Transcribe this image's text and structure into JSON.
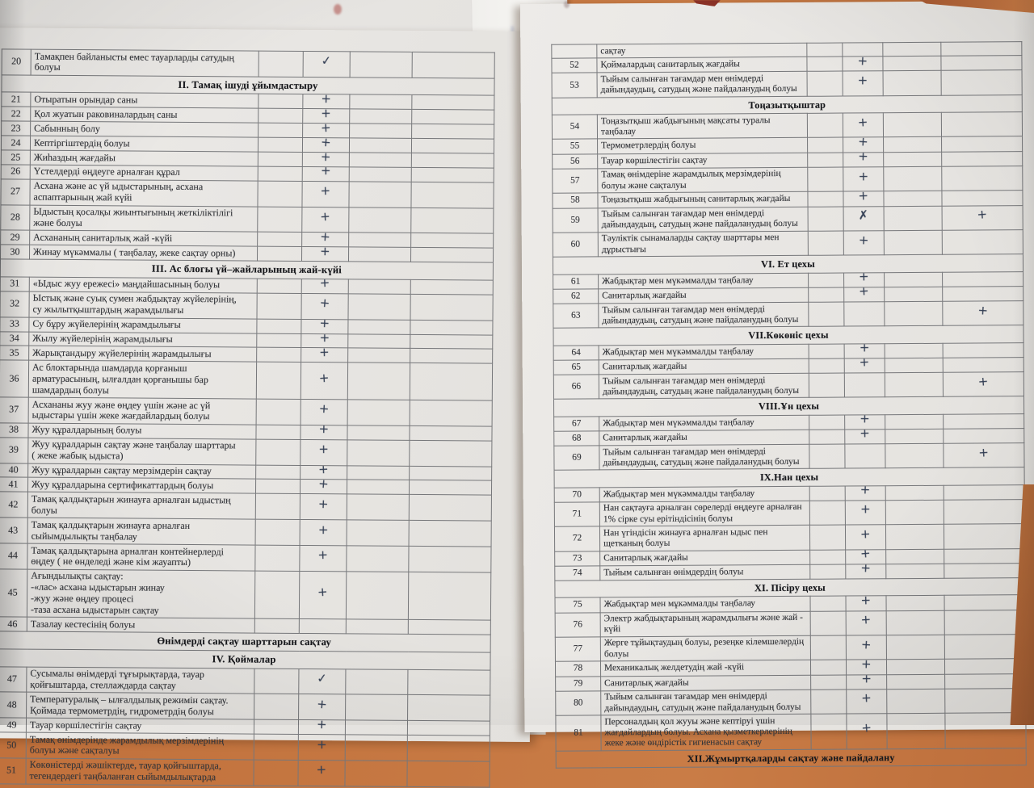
{
  "colors": {
    "desk": "#c1713c",
    "paper": "#e8e6e3",
    "ink": "#333f55",
    "border": "#76777a"
  },
  "page1": {
    "rows": [
      {
        "num": "20",
        "t": "Тамақпен  байланысты емес  тауарларды  сатудың\nболуы",
        "m": "✓"
      },
      {
        "section": "II. Тамақ ішуді  ұйымдастыру"
      },
      {
        "num": "21",
        "t": "Отыратын орындар саны",
        "m": "+"
      },
      {
        "num": "22",
        "t": "Қол жуатын  раковиналардың  саны",
        "m": "+"
      },
      {
        "num": "23",
        "t": "Сабынның болу",
        "m": "+"
      },
      {
        "num": "24",
        "t": "Кептіргіштердің болуы",
        "m": "+"
      },
      {
        "num": "25",
        "t": "Жиһаздың  жағдайы",
        "m": "+"
      },
      {
        "num": "26",
        "t": "Үстелдерді  өңдеуге  арналған құрал",
        "m": "+"
      },
      {
        "num": "27",
        "t": "Асхана  және ас үй  ыдыстарының, асхана\nаспаптарының  жай күйі",
        "m": "+"
      },
      {
        "num": "28",
        "t": "Ыдыстың  қосалқы  жиынтығының  жеткіліктілігі\nжәне  болуы",
        "m": "+"
      },
      {
        "num": "29",
        "t": "Асхананың  санитарлық жай -күйі",
        "m": "+"
      },
      {
        "num": "30",
        "t": "Жинау  мүкәммалы ( таңбалау, жеке сақтау орны)",
        "m": "+"
      },
      {
        "section": "III. Ас блогы үй–жайларының жай-күйі"
      },
      {
        "num": "31",
        "t": "«Ыдыс жуу ережесі» маңдайшасының болуы",
        "m": "+"
      },
      {
        "num": "32",
        "t": "Ыстық және суық  сумен  жабдықтау жүйелерінің,\nсу жылытқыштардың жарамдылығы",
        "m": "+"
      },
      {
        "num": "33",
        "t": "Су бұру  жүйелерінің жарамдылығы",
        "m": "+"
      },
      {
        "num": "34",
        "t": "Жылу жүйелерінің жарамдылығы",
        "m": "+"
      },
      {
        "num": "35",
        "t": "Жарықтандыру жүйелерінің жарамдылығы",
        "m": "+"
      },
      {
        "num": "36",
        "t": "Ас блоктарында шамдарда қорғаныш\nарматурасының, ылғалдан қорғанышы  бар\nшамдардың  болуы",
        "m": "+"
      },
      {
        "num": "37",
        "t": "Асхананы жуу және өңдеу үшін және ас үй\nыдыстары үшін жеке жағдайлардың болуы",
        "m": "+"
      },
      {
        "num": "38",
        "t": "Жуу құралдарының болуы",
        "m": "+"
      },
      {
        "num": "39",
        "t": "Жуу құралдарын сақтау  және таңбалау шарттары\n( жеке жабық ыдыста)",
        "m": "+"
      },
      {
        "num": "40",
        "t": "Жуу құралдарын сақтау  мерзімдерін  сақтау",
        "m": "+"
      },
      {
        "num": "41",
        "t": "Жуу құралдарына сертификаттардың болуы",
        "m": "+"
      },
      {
        "num": "42",
        "t": "Тамақ қалдықтарын жинауға  арналған  ыдыстың\nболуы",
        "m": "+"
      },
      {
        "num": "43",
        "t": "Тамақ қалдықтарын жинауға арналған\nсыйымдылықты таңбалау",
        "m": "+"
      },
      {
        "num": "44",
        "t": "Тамақ қалдықтарына арналған контейнерлерді\nөңдеу ( не өнделеді және кім  жауапты)",
        "m": "+"
      },
      {
        "num": "45",
        "t": "Ағындылықты  сақтау:\n-«лас» асхана ыдыстарын жинау\n-жуу және өңдеу процесі\n-таза асхана  ыдыстарын сақтау",
        "m": "+"
      },
      {
        "num": "46",
        "t": "Тазалау кестесінің болуы",
        "m": ""
      },
      {
        "section": "Өнімдерді  сақтау шарттарын  сақтау"
      },
      {
        "section": "IV. Қоймалар"
      },
      {
        "num": "47",
        "t": "Сусымалы өнімдерді тұғырықтарда, тауар\nқойғыштарда, стеллаждарда сақтау",
        "m": "✓"
      },
      {
        "num": "48",
        "t": "Температуралық – ылғалдылық режимін сақтау.\nҚоймада термометрдің, гидрометрдің болуы",
        "m": "+"
      },
      {
        "num": "49",
        "t": "Тауар көршілестігін сақтау",
        "m": "+"
      },
      {
        "num": "50",
        "t": "Тамақ өнімдерінде жарамдылық мерзімдерінің\nболуы және сақталуы",
        "m": "+"
      },
      {
        "num": "51",
        "t": "Көкөністерді жәшіктерде, тауар қойғыштарда,\nтегендердегі таңбаланған  сыйымдылықтарда",
        "m": "+"
      }
    ]
  },
  "page2": {
    "rows": [
      {
        "num": "",
        "t": "сақтау",
        "m": ""
      },
      {
        "num": "52",
        "t": "Қоймалардың санитарлық жағдайы",
        "m": "+"
      },
      {
        "num": "53",
        "t": "Тыйым салынған тағамдар мен өнімдерді\nдайындаудың, сатудың және пайдаланудың болуы",
        "m": "+"
      },
      {
        "section": "Тоңазытқыштар"
      },
      {
        "num": "54",
        "t": "Тоңазытқыш жабдығының мақсаты туралы\nтаңбалау",
        "m": "+"
      },
      {
        "num": "55",
        "t": "Термометрлердің болуы",
        "m": "+"
      },
      {
        "num": "56",
        "t": "Тауар көршілестігін  сақтау",
        "m": "+"
      },
      {
        "num": "57",
        "t": "Тамақ өнімдеріне жарамдылық мерзімдерінің\nболуы және сақталуы",
        "m": "+"
      },
      {
        "num": "58",
        "t": "Тоңазытқыш жабдығының санитарлық жағдайы",
        "m": "+"
      },
      {
        "num": "59",
        "t": "Тыйым  салынған тағамдар мен өнімдерді\nдайындаудың, сатудың және пайдаланудың болуы",
        "m": "✗",
        "m2": "+"
      },
      {
        "num": "60",
        "t": "Тәуліктік  сынамаларды  сақтау шарттары  мен\nдұрыстығы",
        "m": "+"
      },
      {
        "section": "VI. Ет цехы"
      },
      {
        "num": "61",
        "t": "Жабдықтар мен  мүкәммалды таңбалау",
        "m": "+"
      },
      {
        "num": "62",
        "t": "Санитарлық  жағдайы",
        "m": "+"
      },
      {
        "num": "63",
        "t": "Тыйым салынған  тағамдар мен өнімдерді\nдайындаудың, сатудың және пайдаланудың болуы",
        "m": "",
        "m2": "+"
      },
      {
        "section": "VII.Көкөніс цехы"
      },
      {
        "num": "64",
        "t": "Жабдықтар мен  мүкәммалды таңбалау",
        "m": "+"
      },
      {
        "num": "65",
        "t": "Санитарлық  жағдайы",
        "m": "+"
      },
      {
        "num": "66",
        "t": "Тыйым салынған  тағамдар мен өнімдерді\nдайындаудың, сатудың және пайдаланудың болуы",
        "m": "",
        "m2": "+"
      },
      {
        "section": "VIII.Ұн цехы"
      },
      {
        "num": "67",
        "t": "Жабдықтар мен  мүкәммалды таңбалау",
        "m": "+"
      },
      {
        "num": "68",
        "t": "Санитарлық  жағдайы",
        "m": "+"
      },
      {
        "num": "69",
        "t": "Тыйым салынған  тағамдар мен өнімдерді\nдайындаудың, сатудың және пайдалану­дың болуы",
        "m": "",
        "m2": "+"
      },
      {
        "section": "IX.Нан цехы"
      },
      {
        "num": "70",
        "t": "Жабдықтар мен  мүкәммалды таңбалау",
        "m": "+"
      },
      {
        "num": "71",
        "t": "Нан  сақтауға арналған сөрелерді өңдеуге арналған\n1% сірке суы ерітіндісінің болуы",
        "m": "+"
      },
      {
        "num": "72",
        "t": "Нан үгіндісін жинауға арналған ыдыс пен\nщетканың  болуы",
        "m": "+"
      },
      {
        "num": "73",
        "t": "Санитарлық жағдайы",
        "m": "+"
      },
      {
        "num": "74",
        "t": "Тыйым салынған өнімдердің болуы",
        "m": "+"
      },
      {
        "section": "XI. Пісіру цехы"
      },
      {
        "num": "75",
        "t": "Жабдықтар мен  мұкәммалды таңбалау",
        "m": "+"
      },
      {
        "num": "76",
        "t": "Электр жабдықтарының жарамдылығы және  жай -\nкүйі",
        "m": "+"
      },
      {
        "num": "77",
        "t": "Жерге тұйықтаудың болуы, резеңке кілемшелердің\nболуы",
        "m": "+"
      },
      {
        "num": "78",
        "t": "Механикалық желдетудің жай -күйі",
        "m": "+"
      },
      {
        "num": "79",
        "t": "Санитарлық жағдайы",
        "m": "+"
      },
      {
        "num": "80",
        "t": "Тыйым салынған  тағамдар мен өнімдерді\nдайындаудың, сатудың және пайдаланудың болуы",
        "m": "+"
      },
      {
        "num": "81",
        "t": "Персоналдың қол жууы және кептіруі үшін\nжағдайлардың болуы. Асхана қызметкерлерінің\nжеке және өндірістік гигиенасын сақтау",
        "m": "+"
      },
      {
        "section": "XII.Жұмыртқаларды  сақтау және пайдалану"
      }
    ]
  }
}
